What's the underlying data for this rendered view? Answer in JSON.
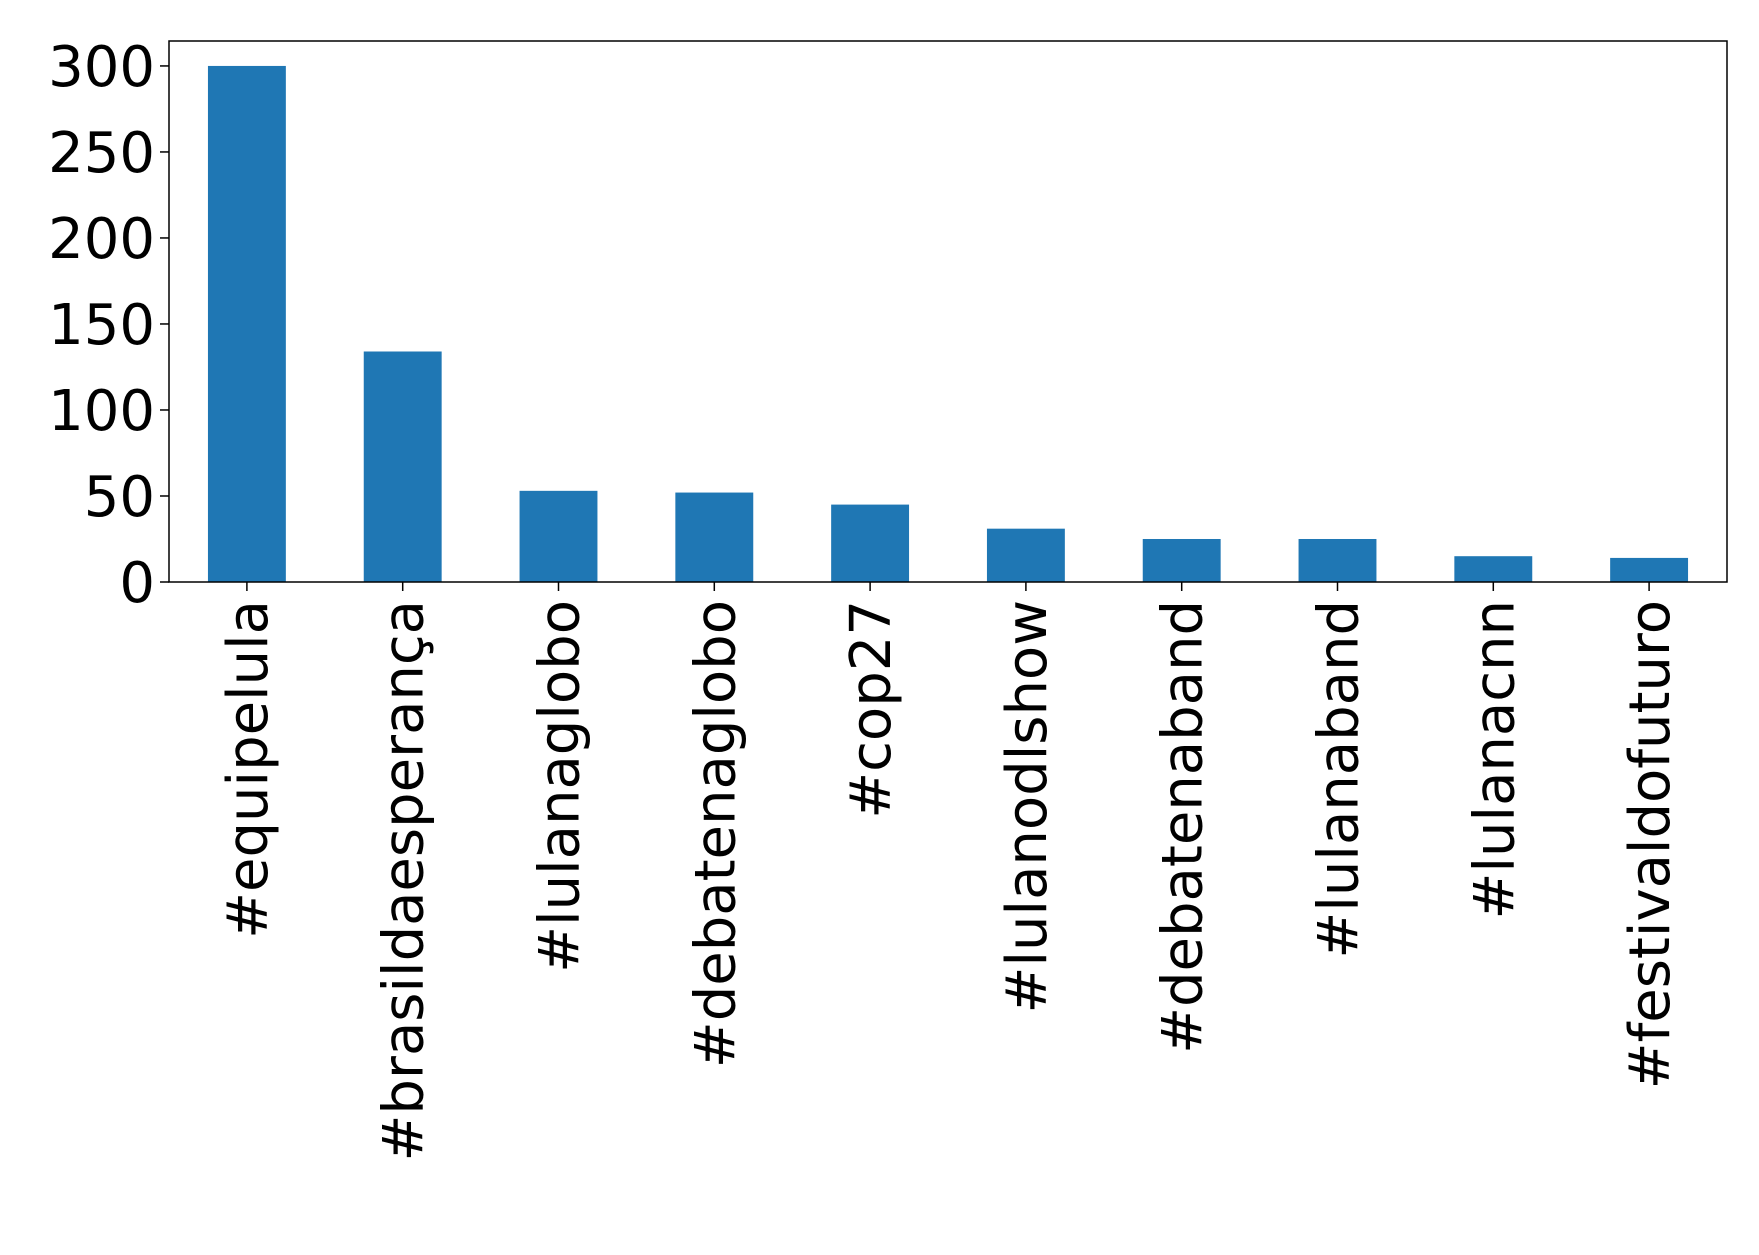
{
  "chart_data": {
    "type": "bar",
    "categories": [
      "#equipelula",
      "#brasildaesperança",
      "#lulanaglobo",
      "#debatenaglobo",
      "#cop27",
      "#lulanodlshow",
      "#debatenaband",
      "#lulanaband",
      "#lulanacnn",
      "#festivaldofuturo"
    ],
    "values": [
      300,
      134,
      53,
      52,
      45,
      31,
      25,
      25,
      15,
      14
    ],
    "color": "#1f77b4",
    "ylim": [
      0,
      314.5
    ],
    "yticks": [
      0,
      50,
      100,
      150,
      200,
      250,
      300
    ],
    "grid": false
  }
}
